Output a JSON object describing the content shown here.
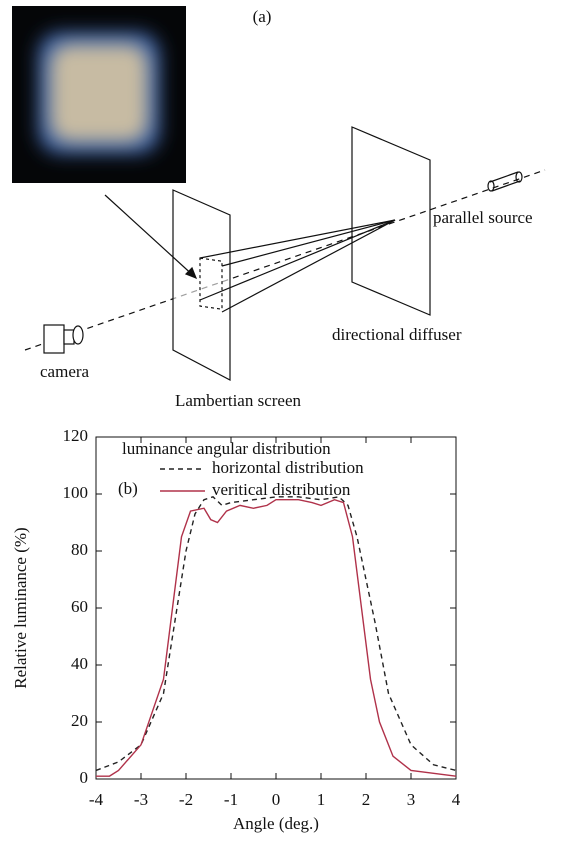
{
  "diagram": {
    "panel_label": "(a)",
    "labels": {
      "source": "parallel source",
      "diffuser": "directional diffuser",
      "camera": "camera",
      "screen": "Lambertian screen"
    }
  },
  "chart_data": {
    "type": "line",
    "panel_label": "(b)",
    "legend_title": "luminance angular distribution",
    "x_label": "Angle (deg.)",
    "y_label": "Relative luminance (%)",
    "xlim": [
      -4,
      4
    ],
    "ylim": [
      0,
      120
    ],
    "xticks": [
      -4,
      -3,
      -2,
      -1,
      0,
      1,
      2,
      3,
      4
    ],
    "yticks": [
      0,
      20,
      40,
      60,
      80,
      100,
      120
    ],
    "series": [
      {
        "name": "horizontal distribution",
        "color": "#222222",
        "dash": true,
        "x": [
          -4,
          -3.5,
          -3,
          -2.5,
          -2.2,
          -2,
          -1.8,
          -1.6,
          -1.4,
          -1.2,
          -1,
          -0.5,
          0,
          0.5,
          1,
          1.4,
          1.6,
          1.8,
          2,
          2.2,
          2.5,
          3,
          3.5,
          4
        ],
        "values": [
          3,
          6,
          12,
          30,
          60,
          80,
          93,
          98,
          99,
          96,
          97,
          98,
          99,
          99,
          98,
          99,
          96,
          85,
          70,
          55,
          30,
          12,
          5,
          3
        ]
      },
      {
        "name": "veritical distribution",
        "color": "#b0324a",
        "dash": false,
        "x": [
          -4,
          -3.7,
          -3.5,
          -3,
          -2.5,
          -2.3,
          -2.1,
          -1.9,
          -1.6,
          -1.45,
          -1.3,
          -1.1,
          -0.8,
          -0.5,
          -0.2,
          0,
          0.5,
          0.8,
          1,
          1.3,
          1.5,
          1.7,
          1.9,
          2.1,
          2.3,
          2.6,
          3,
          3.5,
          4
        ],
        "values": [
          1,
          1,
          3,
          12,
          35,
          60,
          85,
          94,
          95,
          91,
          90,
          94,
          96,
          95,
          96,
          98,
          98,
          97,
          96,
          98,
          97,
          85,
          60,
          35,
          20,
          8,
          3,
          2,
          1
        ]
      }
    ]
  }
}
